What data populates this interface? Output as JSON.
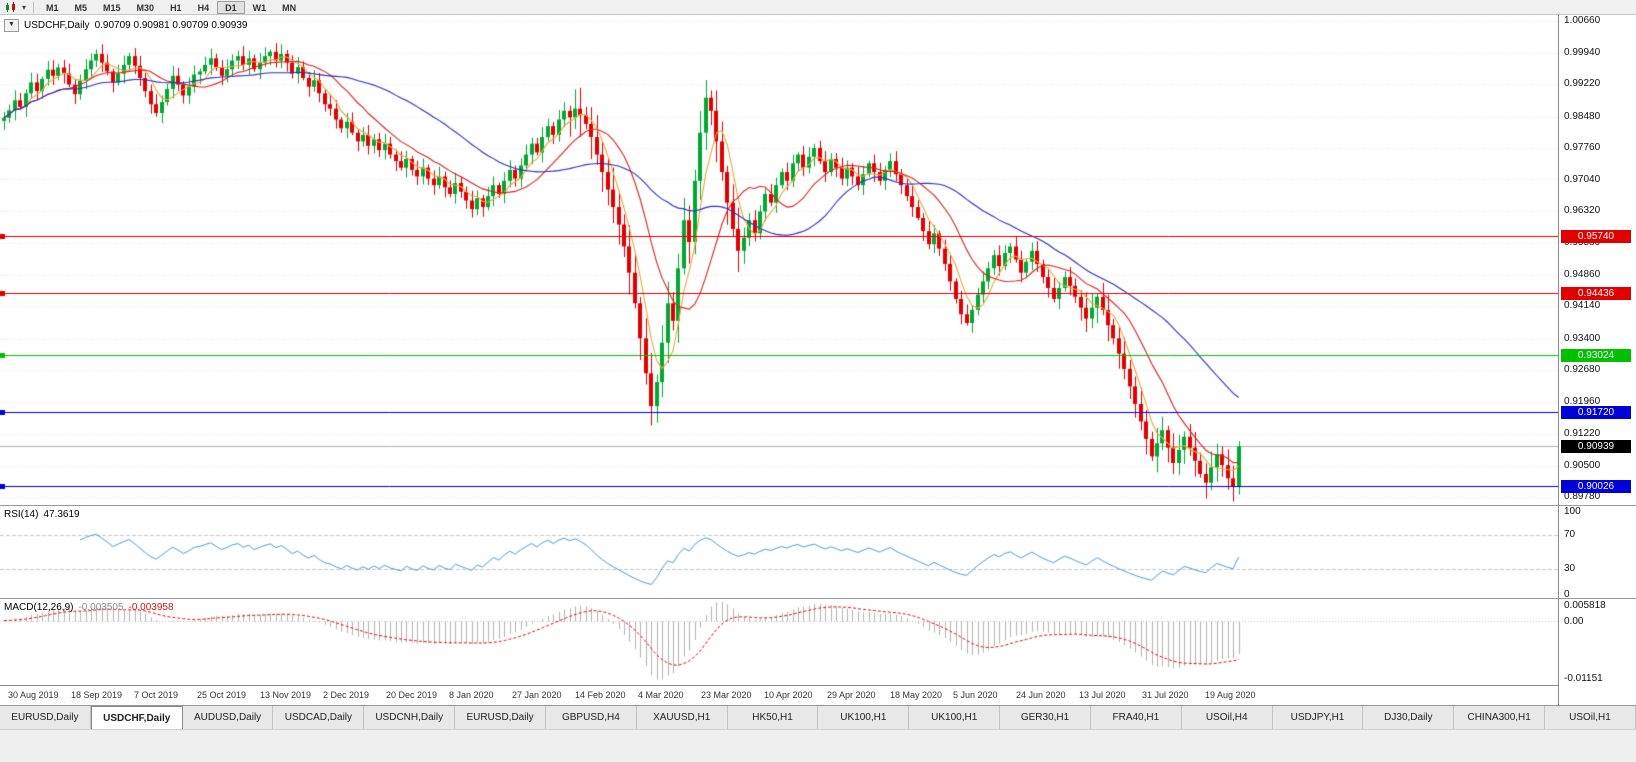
{
  "toolbar": {
    "chart_type_icon": "candlestick-chart-icon",
    "dropdown_icon": "chevron-down",
    "timeframes": [
      "M1",
      "M5",
      "M15",
      "M30",
      "H1",
      "H4",
      "D1",
      "W1",
      "MN"
    ],
    "active_timeframe": "D1"
  },
  "chart": {
    "collapse_icon": "▼",
    "title_symbol": "USDCHF,Daily",
    "title_ohlc": "0.90709 0.90981 0.90709 0.90939"
  },
  "price_axis": {
    "labels": [
      "1.00660",
      "0.99940",
      "0.99220",
      "0.98480",
      "0.97760",
      "0.97040",
      "0.96320",
      "0.95580",
      "0.94860",
      "0.94140",
      "0.93400",
      "0.92680",
      "0.91960",
      "0.91220",
      "0.90500",
      "0.89780"
    ],
    "current_price_tag": {
      "text": "0.90939",
      "bg": "#000000"
    }
  },
  "rsi": {
    "title": "RSI(14)",
    "value": "47.3619",
    "period": 14,
    "axis_labels": [
      "100",
      "70",
      "30",
      "0"
    ],
    "levels": [
      70,
      30
    ],
    "line_color": "#4f9bd8",
    "level_color": "#c8c8c8"
  },
  "macd": {
    "title": "MACD(12,26,9)",
    "value_main": "-0.003505",
    "value_signal": "-0.003958",
    "fast": 12,
    "slow": 26,
    "signal": 9,
    "axis_top": "0.005818",
    "axis_zero": "0.00",
    "axis_bottom": "-0.01151",
    "hist_color": "#b2b2b2",
    "signal_color": "#e01010"
  },
  "date_axis": [
    "30 Aug 2019",
    "18 Sep 2019",
    "7 Oct 2019",
    "25 Oct 2019",
    "13 Nov 2019",
    "2 Dec 2019",
    "20 Dec 2019",
    "8 Jan 2020",
    "27 Jan 2020",
    "14 Feb 2020",
    "4 Mar 2020",
    "23 Mar 2020",
    "10 Apr 2020",
    "29 Apr 2020",
    "18 May 2020",
    "5 Jun 2020",
    "24 Jun 2020",
    "13 Jul 2020",
    "31 Jul 2020",
    "19 Aug 2020"
  ],
  "tabs": {
    "items": [
      "EURUSD,Daily",
      "USDCHF,Daily",
      "AUDUSD,Daily",
      "USDCAD,Daily",
      "USDCNH,Daily",
      "EURUSD,Daily",
      "GBPUSD,H4",
      "XAUUSD,H1",
      "HK50,H1",
      "UK100,H1",
      "UK100,H1",
      "GER30,H1",
      "FRA40,H1",
      "USOil,H4",
      "USDJPY,H1",
      "DJ30,Daily",
      "CHINA300,H1",
      "USOil,H1"
    ],
    "active_index": 1
  },
  "chart_data": {
    "type": "candlestick",
    "symbol": "USDCHF",
    "timeframe": "Daily",
    "ylim": [
      0.896,
      1.008
    ],
    "up_color": "#00a832",
    "down_color": "#e00000",
    "first_open": 0.9838,
    "closes": [
      0.9845,
      0.9862,
      0.9885,
      0.987,
      0.9901,
      0.9926,
      0.9906,
      0.9934,
      0.9955,
      0.9941,
      0.996,
      0.9946,
      0.9921,
      0.9899,
      0.993,
      0.9956,
      0.9976,
      0.9991,
      0.9971,
      0.9951,
      0.9926,
      0.9946,
      0.9966,
      0.9986,
      0.9964,
      0.9936,
      0.9906,
      0.9876,
      0.9856,
      0.9881,
      0.9911,
      0.9941,
      0.9921,
      0.9896,
      0.9916,
      0.9944,
      0.9951,
      0.9966,
      0.9981,
      0.9961,
      0.9941,
      0.9956,
      0.9976,
      0.9986,
      0.9966,
      0.9981,
      0.9956,
      0.9971,
      0.9986,
      0.9996,
      0.9976,
      0.9991,
      0.9971,
      0.9946,
      0.9961,
      0.9936,
      0.9916,
      0.9931,
      0.9901,
      0.9876,
      0.9866,
      0.9841,
      0.9821,
      0.9836,
      0.9811,
      0.9791,
      0.9806,
      0.9781,
      0.9796,
      0.9771,
      0.9786,
      0.9761,
      0.9746,
      0.9731,
      0.9751,
      0.9726,
      0.9711,
      0.9731,
      0.9706,
      0.9691,
      0.9711,
      0.9686,
      0.9671,
      0.9696,
      0.9676,
      0.9656,
      0.9636,
      0.9661,
      0.9641,
      0.9666,
      0.9691,
      0.9671,
      0.9701,
      0.9726,
      0.9706,
      0.9736,
      0.9761,
      0.9786,
      0.9766,
      0.9801,
      0.9826,
      0.9806,
      0.9841,
      0.9861,
      0.9846,
      0.9866,
      0.9851,
      0.9831,
      0.9801,
      0.9761,
      0.9721,
      0.9681,
      0.9641,
      0.9601,
      0.9551,
      0.9491,
      0.9421,
      0.9341,
      0.9261,
      0.9186,
      0.9241,
      0.9331,
      0.9421,
      0.9381,
      0.9501,
      0.9611,
      0.9561,
      0.9701,
      0.9811,
      0.9891,
      0.9861,
      0.9791,
      0.9721,
      0.9651,
      0.9591,
      0.9541,
      0.9571,
      0.9611,
      0.9581,
      0.9631,
      0.9671,
      0.9651,
      0.9691,
      0.9721,
      0.9701,
      0.9741,
      0.9761,
      0.9731,
      0.9756,
      0.9776,
      0.9746,
      0.9721,
      0.9751,
      0.9731,
      0.9706,
      0.9731,
      0.9711,
      0.9691,
      0.9716,
      0.9741,
      0.9721,
      0.9701,
      0.9726,
      0.9746,
      0.9716,
      0.9691,
      0.9666,
      0.9641,
      0.9616,
      0.9586,
      0.9556,
      0.9581,
      0.9546,
      0.9511,
      0.9471,
      0.9431,
      0.9396,
      0.9376,
      0.9406,
      0.9441,
      0.9471,
      0.9501,
      0.9531,
      0.9506,
      0.9536,
      0.9551,
      0.9521,
      0.9491,
      0.9516,
      0.9541,
      0.9511,
      0.9481,
      0.9456,
      0.9431,
      0.9456,
      0.9481,
      0.9461,
      0.9436,
      0.9411,
      0.9386,
      0.9411,
      0.9436,
      0.9406,
      0.9371,
      0.9341,
      0.9306,
      0.9271,
      0.9231,
      0.9191,
      0.9151,
      0.9111,
      0.9071,
      0.9101,
      0.9131,
      0.9091,
      0.9056,
      0.9086,
      0.9116,
      0.9091,
      0.9061,
      0.9031,
      0.9011,
      0.9046,
      0.9076,
      0.9051,
      0.9021,
      0.9001,
      0.9094
    ],
    "overlays": [
      {
        "name": "ma-fast",
        "period": 5,
        "color": "#eda53c"
      },
      {
        "name": "ma-mid",
        "period": 13,
        "color": "#dd2020"
      },
      {
        "name": "ma-slow",
        "period": 34,
        "color": "#2a2ec8"
      }
    ],
    "hlines": [
      {
        "price": 0.9574,
        "color": "#e00000",
        "label": "0.95740"
      },
      {
        "price": 0.94436,
        "color": "#e00000",
        "label": "0.94436"
      },
      {
        "price": 0.93024,
        "color": "#00c000",
        "label": "0.93024"
      },
      {
        "price": 0.9172,
        "color": "#0000d8",
        "label": "0.91720"
      },
      {
        "price": 0.90026,
        "color": "#0000d8",
        "label": "0.90026"
      }
    ],
    "current_price": 0.90939
  }
}
